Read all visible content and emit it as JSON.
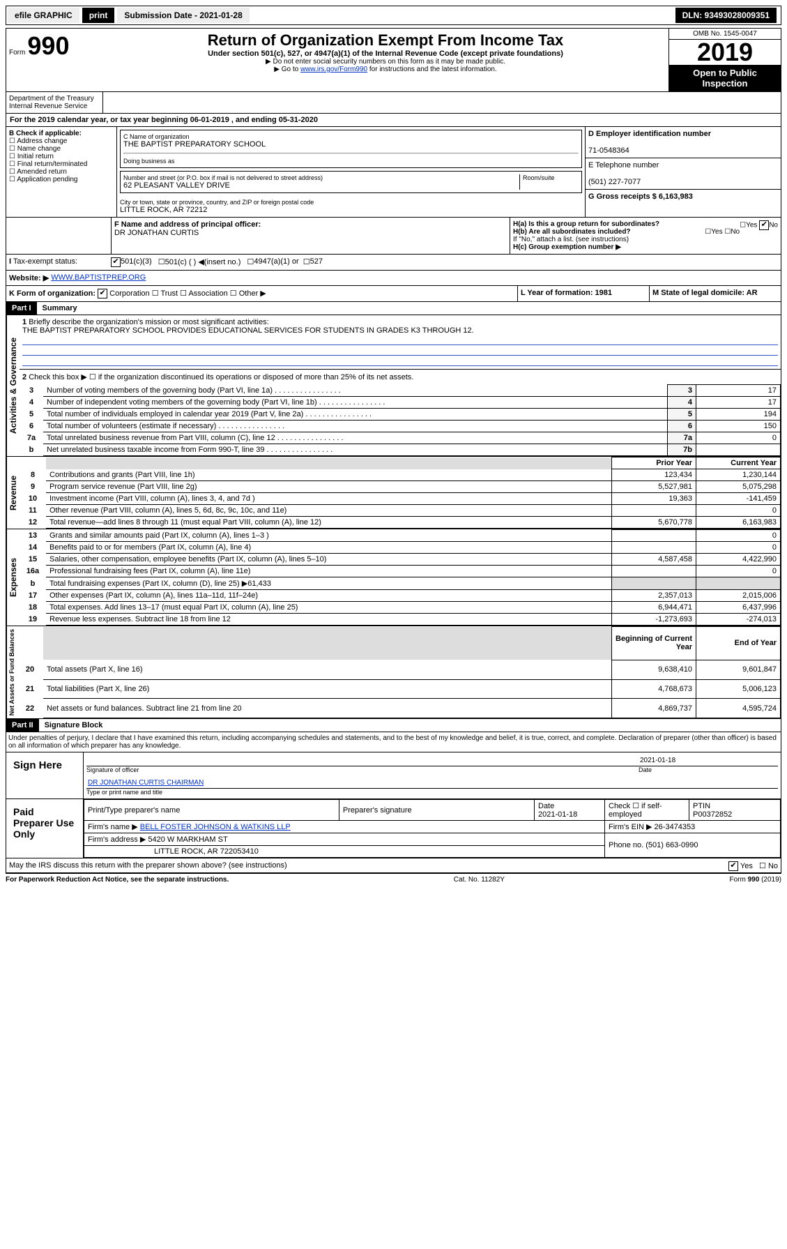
{
  "topbar": {
    "efile": "efile GRAPHIC",
    "print": "print",
    "subdate_label": "Submission Date - 2021-01-28",
    "dln": "DLN: 93493028009351"
  },
  "header": {
    "form": "Form",
    "num": "990",
    "title": "Return of Organization Exempt From Income Tax",
    "sub": "Under section 501(c), 527, or 4947(a)(1) of the Internal Revenue Code (except private foundations)",
    "note1": "▶ Do not enter social security numbers on this form as it may be made public.",
    "note2_pre": "▶ Go to ",
    "note2_link": "www.irs.gov/Form990",
    "note2_post": " for instructions and the latest information.",
    "dept": "Department of the Treasury\nInternal Revenue Service",
    "omb": "OMB No. 1545-0047",
    "year": "2019",
    "open": "Open to Public Inspection"
  },
  "a_line": {
    "text": "For the 2019 calendar year, or tax year beginning 06-01-2019   , and ending 05-31-2020"
  },
  "boxB": {
    "title": "B Check if applicable:",
    "opts": [
      "Address change",
      "Name change",
      "Initial return",
      "Final return/terminated",
      "Amended return",
      "Application pending"
    ]
  },
  "boxC": {
    "name_label": "C Name of organization",
    "name": "THE BAPTIST PREPARATORY SCHOOL",
    "dba_label": "Doing business as",
    "addr_label": "Number and street (or P.O. box if mail is not delivered to street address)",
    "addr": "62 PLEASANT VALLEY DRIVE",
    "room_label": "Room/suite",
    "city_label": "City or town, state or province, country, and ZIP or foreign postal code",
    "city": "LITTLE ROCK, AR  72212"
  },
  "boxD": {
    "label": "D Employer identification number",
    "val": "71-0548364"
  },
  "boxE": {
    "label": "E Telephone number",
    "val": "(501) 227-7077"
  },
  "boxG": {
    "label": "G Gross receipts $ 6,163,983"
  },
  "boxF": {
    "label": "F  Name and address of principal officer:",
    "val": "DR JONATHAN CURTIS"
  },
  "boxH": {
    "a": "H(a)  Is this a group return for subordinates?",
    "b": "H(b)  Are all subordinates included?",
    "b_note": "If \"No,\" attach a list. (see instructions)",
    "c": "H(c)  Group exemption number ▶",
    "yes": "Yes",
    "no": "No"
  },
  "boxI": {
    "label": "Tax-exempt status:",
    "c3": "501(c)(3)",
    "c": "501(c) ( ) ◀(insert no.)",
    "a1": "4947(a)(1) or",
    "s527": "527"
  },
  "boxJ": {
    "label": "Website: ▶",
    "val": "WWW.BAPTISTPREP.ORG"
  },
  "boxK": {
    "label": "K Form of organization:",
    "corp": "Corporation",
    "trust": "Trust",
    "assoc": "Association",
    "other": "Other ▶"
  },
  "boxL": {
    "label": "L Year of formation: 1981"
  },
  "boxM": {
    "label": "M State of legal domicile: AR"
  },
  "part1": {
    "label": "Part I",
    "title": "Summary",
    "q1": "Briefly describe the organization's mission or most significant activities:",
    "q1_ans": "THE BAPTIST PREPARATORY SCHOOL PROVIDES EDUCATIONAL SERVICES FOR STUDENTS IN GRADES K3 THROUGH 12.",
    "q2": "Check this box ▶ ☐  if the organization discontinued its operations or disposed of more than 25% of its net assets.",
    "lines_gov": [
      {
        "n": "3",
        "t": "Number of voting members of the governing body (Part VI, line 1a)",
        "r": "3",
        "v": "17"
      },
      {
        "n": "4",
        "t": "Number of independent voting members of the governing body (Part VI, line 1b)",
        "r": "4",
        "v": "17"
      },
      {
        "n": "5",
        "t": "Total number of individuals employed in calendar year 2019 (Part V, line 2a)",
        "r": "5",
        "v": "194"
      },
      {
        "n": "6",
        "t": "Total number of volunteers (estimate if necessary)",
        "r": "6",
        "v": "150"
      },
      {
        "n": "7a",
        "t": "Total unrelated business revenue from Part VIII, column (C), line 12",
        "r": "7a",
        "v": "0"
      },
      {
        "n": "b",
        "t": "Net unrelated business taxable income from Form 990-T, line 39",
        "r": "7b",
        "v": ""
      }
    ],
    "col_prior": "Prior Year",
    "col_current": "Current Year",
    "col_beg": "Beginning of Current Year",
    "col_end": "End of Year",
    "revenue": [
      {
        "n": "8",
        "t": "Contributions and grants (Part VIII, line 1h)",
        "p": "123,434",
        "c": "1,230,144"
      },
      {
        "n": "9",
        "t": "Program service revenue (Part VIII, line 2g)",
        "p": "5,527,981",
        "c": "5,075,298"
      },
      {
        "n": "10",
        "t": "Investment income (Part VIII, column (A), lines 3, 4, and 7d )",
        "p": "19,363",
        "c": "-141,459"
      },
      {
        "n": "11",
        "t": "Other revenue (Part VIII, column (A), lines 5, 6d, 8c, 9c, 10c, and 11e)",
        "p": "",
        "c": "0"
      },
      {
        "n": "12",
        "t": "Total revenue—add lines 8 through 11 (must equal Part VIII, column (A), line 12)",
        "p": "5,670,778",
        "c": "6,163,983"
      }
    ],
    "expenses": [
      {
        "n": "13",
        "t": "Grants and similar amounts paid (Part IX, column (A), lines 1–3 )",
        "p": "",
        "c": "0"
      },
      {
        "n": "14",
        "t": "Benefits paid to or for members (Part IX, column (A), line 4)",
        "p": "",
        "c": "0"
      },
      {
        "n": "15",
        "t": "Salaries, other compensation, employee benefits (Part IX, column (A), lines 5–10)",
        "p": "4,587,458",
        "c": "4,422,990"
      },
      {
        "n": "16a",
        "t": "Professional fundraising fees (Part IX, column (A), line 11e)",
        "p": "",
        "c": "0"
      },
      {
        "n": "b",
        "t": "Total fundraising expenses (Part IX, column (D), line 25) ▶61,433",
        "p": "shaded",
        "c": "shaded"
      },
      {
        "n": "17",
        "t": "Other expenses (Part IX, column (A), lines 11a–11d, 11f–24e)",
        "p": "2,357,013",
        "c": "2,015,006"
      },
      {
        "n": "18",
        "t": "Total expenses. Add lines 13–17 (must equal Part IX, column (A), line 25)",
        "p": "6,944,471",
        "c": "6,437,996"
      },
      {
        "n": "19",
        "t": "Revenue less expenses. Subtract line 18 from line 12",
        "p": "-1,273,693",
        "c": "-274,013"
      }
    ],
    "netassets": [
      {
        "n": "20",
        "t": "Total assets (Part X, line 16)",
        "p": "9,638,410",
        "c": "9,601,847"
      },
      {
        "n": "21",
        "t": "Total liabilities (Part X, line 26)",
        "p": "4,768,673",
        "c": "5,006,123"
      },
      {
        "n": "22",
        "t": "Net assets or fund balances. Subtract line 21 from line 20",
        "p": "4,869,737",
        "c": "4,595,724"
      }
    ],
    "vlabels": {
      "gov": "Activities & Governance",
      "rev": "Revenue",
      "exp": "Expenses",
      "net": "Net Assets or Fund Balances"
    }
  },
  "part2": {
    "label": "Part II",
    "title": "Signature Block",
    "perjury": "Under penalties of perjury, I declare that I have examined this return, including accompanying schedules and statements, and to the best of my knowledge and belief, it is true, correct, and complete. Declaration of preparer (other than officer) is based on all information of which preparer has any knowledge.",
    "sign_here": "Sign Here",
    "sig_officer": "Signature of officer",
    "date": "2021-01-18",
    "date_label": "Date",
    "officer_name": "DR JONATHAN CURTIS CHAIRMAN",
    "type_name": "Type or print name and title",
    "paid": "Paid Preparer Use Only",
    "prep_name_label": "Print/Type preparer's name",
    "prep_sig_label": "Preparer's signature",
    "prep_date_label": "Date",
    "prep_date": "2021-01-18",
    "check_label": "Check ☐ if self-employed",
    "ptin_label": "PTIN",
    "ptin": "P00372852",
    "firm_name_label": "Firm's name    ▶",
    "firm_name": "BELL FOSTER JOHNSON & WATKINS LLP",
    "firm_ein_label": "Firm's EIN ▶ 26-3474353",
    "firm_addr_label": "Firm's address ▶",
    "firm_addr": "5420 W MARKHAM ST",
    "firm_city": "LITTLE ROCK, AR  722053410",
    "phone_label": "Phone no. (501) 663-0990",
    "discuss": "May the IRS discuss this return with the preparer shown above? (see instructions)",
    "yes": "Yes",
    "no": "No"
  },
  "footer": {
    "left": "For Paperwork Reduction Act Notice, see the separate instructions.",
    "mid": "Cat. No. 11282Y",
    "right": "Form 990 (2019)"
  }
}
